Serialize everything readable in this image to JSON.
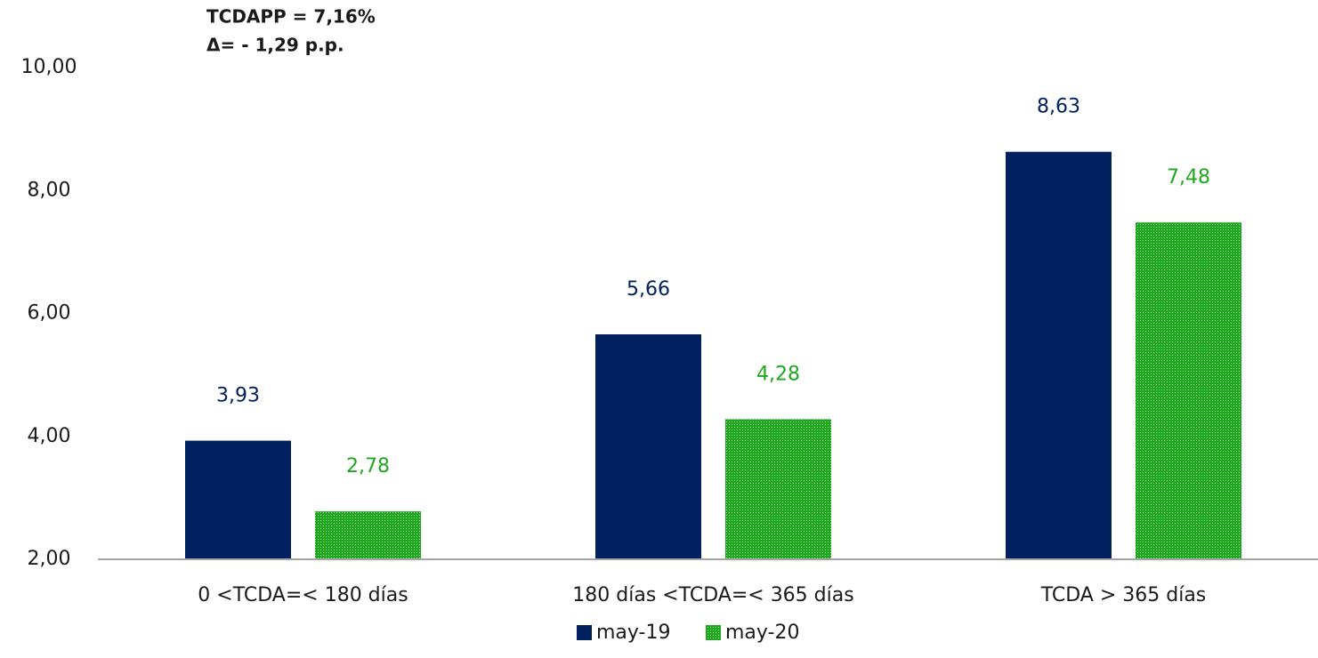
{
  "chart_data": {
    "type": "bar",
    "annotations": [
      "TCDAPP = 7,16%",
      "Δ=  - 1,29 p.p."
    ],
    "categories": [
      "0 <TCDA=< 180 días",
      "180 días <TCDA=< 365 días",
      "TCDA > 365 días"
    ],
    "series": [
      {
        "name": "may-19",
        "color": "#002060",
        "values": [
          3.93,
          5.66,
          8.63
        ],
        "value_labels": [
          "3,93",
          "5,66",
          "8,63"
        ]
      },
      {
        "name": "may-20",
        "color": "#1fa81f",
        "pattern": "dots",
        "values": [
          2.78,
          4.28,
          7.48
        ],
        "value_labels": [
          "2,78",
          "4,28",
          "7,48"
        ]
      }
    ],
    "ylim": [
      2,
      10
    ],
    "yticks": [
      {
        "value": 2,
        "label": "2,00"
      },
      {
        "value": 4,
        "label": "4,00"
      },
      {
        "value": 6,
        "label": "6,00"
      },
      {
        "value": 8,
        "label": "8,00"
      },
      {
        "value": 10,
        "label": "10,00"
      }
    ],
    "grid": false
  }
}
